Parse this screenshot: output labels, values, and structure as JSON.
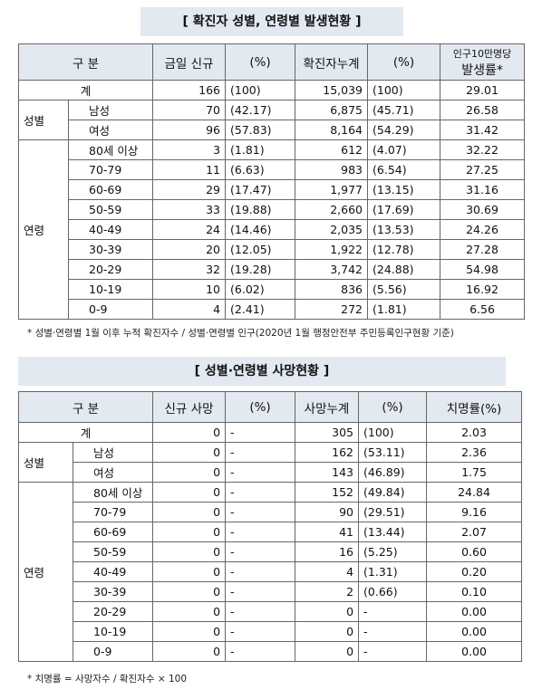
{
  "tables": [
    {
      "title": "[ 확진자 성별, 연령별 발생현황 ]",
      "header": [
        "구 분",
        "금일 신규",
        "(%)",
        "확진자누계",
        "(%)",
        [
          "인구10만명당",
          "발생률*"
        ]
      ],
      "total": {
        "label": "계",
        "cells": [
          "166",
          "(100)",
          "15,039",
          "(100)",
          "29.01"
        ]
      },
      "groups": [
        {
          "label": "성별",
          "rows": [
            {
              "label": "남성",
              "cells": [
                "70",
                "(42.17)",
                "6,875",
                "(45.71)",
                "26.58"
              ]
            },
            {
              "label": "여성",
              "cells": [
                "96",
                "(57.83)",
                "8,164",
                "(54.29)",
                "31.42"
              ]
            }
          ]
        },
        {
          "label": "연령",
          "rows": [
            {
              "label": "80세 이상",
              "cells": [
                "3",
                "(1.81)",
                "612",
                "(4.07)",
                "32.22"
              ]
            },
            {
              "label": "70-79",
              "cells": [
                "11",
                "(6.63)",
                "983",
                "(6.54)",
                "27.25"
              ]
            },
            {
              "label": "60-69",
              "cells": [
                "29",
                "(17.47)",
                "1,977",
                "(13.15)",
                "31.16"
              ]
            },
            {
              "label": "50-59",
              "cells": [
                "33",
                "(19.88)",
                "2,660",
                "(17.69)",
                "30.69"
              ]
            },
            {
              "label": "40-49",
              "cells": [
                "24",
                "(14.46)",
                "2,035",
                "(13.53)",
                "24.26"
              ]
            },
            {
              "label": "30-39",
              "cells": [
                "20",
                "(12.05)",
                "1,922",
                "(12.78)",
                "27.28"
              ]
            },
            {
              "label": "20-29",
              "cells": [
                "32",
                "(19.28)",
                "3,742",
                "(24.88)",
                "54.98"
              ]
            },
            {
              "label": "10-19",
              "cells": [
                "10",
                "(6.02)",
                "836",
                "(5.56)",
                "16.92"
              ]
            },
            {
              "label": "0-9",
              "cells": [
                "4",
                "(2.41)",
                "272",
                "(1.81)",
                "6.56"
              ]
            }
          ]
        }
      ],
      "note": "* 성별·연령별 1월 이후 누적 확진자수 / 성별·연령별 인구(2020년 1월 행정안전부 주민등록인구현황 기준)"
    },
    {
      "title": "[ 성별·연령별 사망현황 ]",
      "header": [
        "구 분",
        "신규 사망",
        "(%)",
        "사망누계",
        "(%)",
        "치명률(%)"
      ],
      "total": {
        "label": "계",
        "cells": [
          "0",
          "-",
          "305",
          "(100)",
          "2.03"
        ]
      },
      "groups": [
        {
          "label": "성별",
          "rows": [
            {
              "label": "남성",
              "cells": [
                "0",
                "-",
                "162",
                "(53.11)",
                "2.36"
              ]
            },
            {
              "label": "여성",
              "cells": [
                "0",
                "-",
                "143",
                "(46.89)",
                "1.75"
              ]
            }
          ]
        },
        {
          "label": "연령",
          "rows": [
            {
              "label": "80세 이상",
              "cells": [
                "0",
                "-",
                "152",
                "(49.84)",
                "24.84"
              ]
            },
            {
              "label": "70-79",
              "cells": [
                "0",
                "-",
                "90",
                "(29.51)",
                "9.16"
              ]
            },
            {
              "label": "60-69",
              "cells": [
                "0",
                "-",
                "41",
                "(13.44)",
                "2.07"
              ]
            },
            {
              "label": "50-59",
              "cells": [
                "0",
                "-",
                "16",
                "(5.25)",
                "0.60"
              ]
            },
            {
              "label": "40-49",
              "cells": [
                "0",
                "-",
                "4",
                "(1.31)",
                "0.20"
              ]
            },
            {
              "label": "30-39",
              "cells": [
                "0",
                "-",
                "2",
                "(0.66)",
                "0.10"
              ]
            },
            {
              "label": "20-29",
              "cells": [
                "0",
                "-",
                "0",
                "-",
                "0.00"
              ]
            },
            {
              "label": "10-19",
              "cells": [
                "0",
                "-",
                "0",
                "-",
                "0.00"
              ]
            },
            {
              "label": "0-9",
              "cells": [
                "0",
                "-",
                "0",
                "-",
                "0.00"
              ]
            }
          ]
        }
      ],
      "note": "* 치명률 = 사망자수 / 확진자수 × 100"
    }
  ]
}
